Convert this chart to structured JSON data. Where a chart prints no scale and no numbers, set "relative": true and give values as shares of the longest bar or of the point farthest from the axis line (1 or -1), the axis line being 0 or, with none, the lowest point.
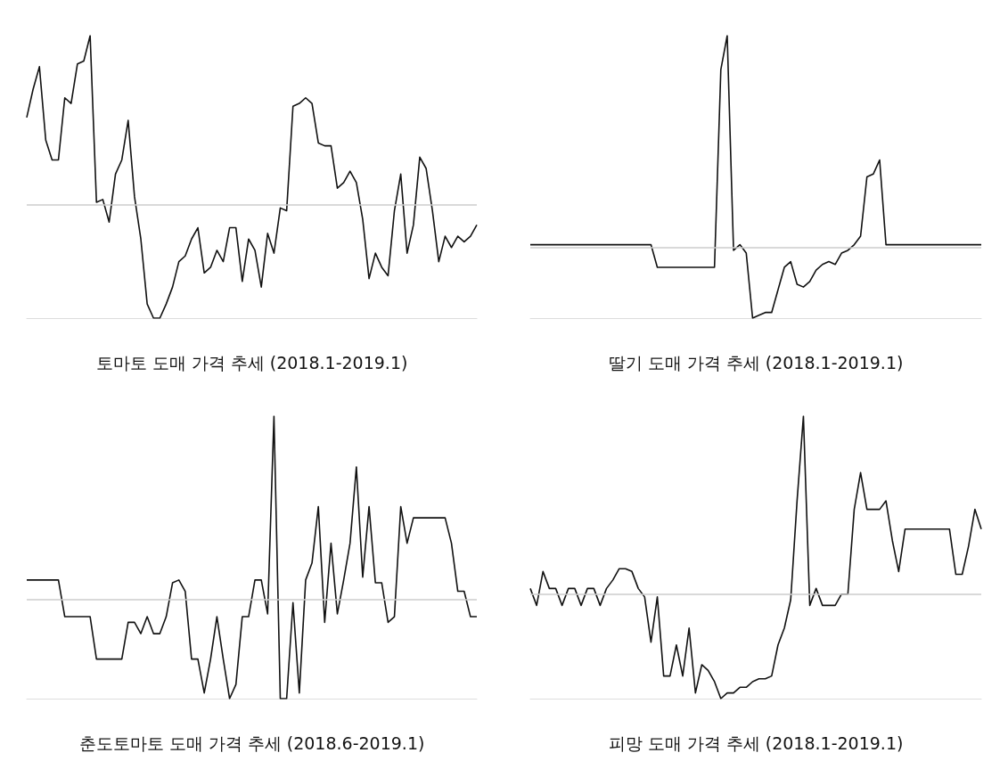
{
  "chart_data": [
    {
      "type": "line",
      "title": "토마토 도매 가격 추세 (2018.1-2019.1)",
      "relative": true,
      "marker": "none",
      "grid": false,
      "color": "#111111",
      "categories": [
        null,
        null,
        null,
        null,
        null,
        null,
        null,
        null,
        null,
        null,
        null,
        null,
        null,
        null,
        null,
        null,
        null,
        null,
        null,
        null,
        null,
        null,
        null,
        null,
        null,
        null,
        null,
        null,
        null,
        null,
        null,
        null,
        null,
        null,
        null,
        null,
        null,
        null,
        null,
        null,
        null,
        null,
        null,
        null,
        null,
        null,
        null,
        null,
        null,
        null,
        null,
        null,
        null,
        null,
        null,
        null,
        null,
        null,
        null,
        null,
        null,
        null,
        null,
        null,
        null,
        null,
        null,
        null,
        null,
        null,
        null,
        null
      ],
      "values": [
        0.71,
        0.81,
        0.89,
        0.63,
        0.56,
        0.56,
        0.78,
        0.76,
        0.9,
        0.91,
        1,
        0.41,
        0.42,
        0.34,
        0.51,
        0.56,
        0.7,
        0.43,
        0.28,
        0.05,
        0,
        0,
        0.05,
        0.11,
        0.2,
        0.22,
        0.28,
        0.32,
        0.16,
        0.18,
        0.24,
        0.2,
        0.32,
        0.32,
        0.13,
        0.28,
        0.24,
        0.11,
        0.3,
        0.23,
        0.39,
        0.38,
        0.75,
        0.76,
        0.78,
        0.76,
        0.62,
        0.61,
        0.61,
        0.46,
        0.48,
        0.52,
        0.48,
        0.35,
        0.14,
        0.23,
        0.18,
        0.15,
        0.38,
        0.51,
        0.23,
        0.33,
        0.57,
        0.53,
        0.38,
        0.2,
        0.29,
        0.25,
        0.29,
        0.27,
        0.29,
        0.33
      ],
      "ref_lines": [
        {
          "axis": "y",
          "value": 0.4,
          "color": "#cccccc"
        }
      ]
    },
    {
      "type": "line",
      "title": "딸기 도매 가격 추세 (2018.1-2019.1)",
      "relative": true,
      "marker": "none",
      "grid": false,
      "color": "#111111",
      "categories": [
        null,
        null,
        null,
        null,
        null,
        null,
        null,
        null,
        null,
        null,
        null,
        null,
        null,
        null,
        null,
        null,
        null,
        null,
        null,
        null,
        null,
        null,
        null,
        null,
        null,
        null,
        null,
        null,
        null,
        null,
        null,
        null,
        null,
        null,
        null,
        null,
        null,
        null,
        null,
        null,
        null,
        null,
        null,
        null,
        null,
        null,
        null,
        null,
        null,
        null,
        null,
        null,
        null,
        null,
        null,
        null,
        null,
        null,
        null,
        null,
        null,
        null,
        null,
        null,
        null,
        null,
        null,
        null,
        null,
        null,
        null,
        null
      ],
      "values": [
        0.26,
        0.26,
        0.26,
        0.26,
        0.26,
        0.26,
        0.26,
        0.26,
        0.26,
        0.26,
        0.26,
        0.26,
        0.26,
        0.26,
        0.26,
        0.26,
        0.26,
        0.26,
        0.26,
        0.26,
        0.18,
        0.18,
        0.18,
        0.18,
        0.18,
        0.18,
        0.18,
        0.18,
        0.18,
        0.18,
        0.88,
        1,
        0.24,
        0.26,
        0.23,
        0,
        0.01,
        0.02,
        0.02,
        0.1,
        0.18,
        0.2,
        0.12,
        0.11,
        0.13,
        0.17,
        0.19,
        0.2,
        0.19,
        0.23,
        0.24,
        0.26,
        0.29,
        0.5,
        0.51,
        0.56,
        0.26,
        0.26,
        0.26,
        0.26,
        0.26,
        0.26,
        0.26,
        0.26,
        0.26,
        0.26,
        0.26,
        0.26,
        0.26,
        0.26,
        0.26,
        0.26
      ],
      "ref_lines": [
        {
          "axis": "y",
          "value": 0.25,
          "color": "#cccccc"
        }
      ]
    },
    {
      "type": "line",
      "title": "춘도토마토 도매 가격 추세 (2018.6-2019.1)",
      "relative": true,
      "marker": "none",
      "grid": false,
      "color": "#111111",
      "categories": [
        null,
        null,
        null,
        null,
        null,
        null,
        null,
        null,
        null,
        null,
        null,
        null,
        null,
        null,
        null,
        null,
        null,
        null,
        null,
        null,
        null,
        null,
        null,
        null,
        null,
        null,
        null,
        null,
        null,
        null,
        null,
        null,
        null,
        null,
        null,
        null,
        null,
        null,
        null,
        null,
        null,
        null,
        null,
        null,
        null,
        null,
        null,
        null,
        null,
        null,
        null,
        null,
        null,
        null,
        null,
        null,
        null,
        null,
        null,
        null,
        null,
        null,
        null,
        null,
        null,
        null,
        null,
        null,
        null,
        null,
        null,
        null
      ],
      "values": [
        0.42,
        0.42,
        0.42,
        0.42,
        0.42,
        0.42,
        0.29,
        0.29,
        0.29,
        0.29,
        0.29,
        0.14,
        0.14,
        0.14,
        0.14,
        0.14,
        0.27,
        0.27,
        0.23,
        0.29,
        0.23,
        0.23,
        0.29,
        0.41,
        0.42,
        0.38,
        0.14,
        0.14,
        0.02,
        0.14,
        0.29,
        0.14,
        0,
        0.05,
        0.29,
        0.29,
        0.42,
        0.42,
        0.3,
        1,
        0,
        0,
        0.34,
        0.02,
        0.42,
        0.48,
        0.68,
        0.27,
        0.55,
        0.3,
        0.42,
        0.55,
        0.82,
        0.43,
        0.68,
        0.41,
        0.41,
        0.27,
        0.29,
        0.68,
        0.55,
        0.64,
        0.64,
        0.64,
        0.64,
        0.64,
        0.64,
        0.55,
        0.38,
        0.38,
        0.29,
        0.29
      ],
      "ref_lines": [
        {
          "axis": "y",
          "value": 0.35,
          "color": "#cccccc"
        }
      ]
    },
    {
      "type": "line",
      "title": "피망 도매 가격 추세 (2018.1-2019.1)",
      "relative": true,
      "marker": "none",
      "grid": false,
      "color": "#111111",
      "categories": [
        null,
        null,
        null,
        null,
        null,
        null,
        null,
        null,
        null,
        null,
        null,
        null,
        null,
        null,
        null,
        null,
        null,
        null,
        null,
        null,
        null,
        null,
        null,
        null,
        null,
        null,
        null,
        null,
        null,
        null,
        null,
        null,
        null,
        null,
        null,
        null,
        null,
        null,
        null,
        null,
        null,
        null,
        null,
        null,
        null,
        null,
        null,
        null,
        null,
        null,
        null,
        null,
        null,
        null,
        null,
        null,
        null,
        null,
        null,
        null,
        null,
        null,
        null,
        null,
        null,
        null,
        null,
        null,
        null,
        null,
        null,
        null
      ],
      "values": [
        0.39,
        0.33,
        0.45,
        0.39,
        0.39,
        0.33,
        0.39,
        0.39,
        0.33,
        0.39,
        0.39,
        0.33,
        0.39,
        0.42,
        0.46,
        0.46,
        0.45,
        0.39,
        0.36,
        0.2,
        0.36,
        0.08,
        0.08,
        0.19,
        0.08,
        0.25,
        0.02,
        0.12,
        0.1,
        0.06,
        0,
        0.02,
        0.02,
        0.04,
        0.04,
        0.06,
        0.07,
        0.07,
        0.08,
        0.19,
        0.25,
        0.35,
        0.7,
        1,
        0.33,
        0.39,
        0.33,
        0.33,
        0.33,
        0.37,
        0.37,
        0.67,
        0.8,
        0.67,
        0.67,
        0.67,
        0.7,
        0.56,
        0.45,
        0.6,
        0.6,
        0.6,
        0.6,
        0.6,
        0.6,
        0.6,
        0.6,
        0.44,
        0.44,
        0.54,
        0.67,
        0.6
      ],
      "ref_lines": [
        {
          "axis": "y",
          "value": 0.37,
          "color": "#cccccc"
        }
      ]
    }
  ]
}
